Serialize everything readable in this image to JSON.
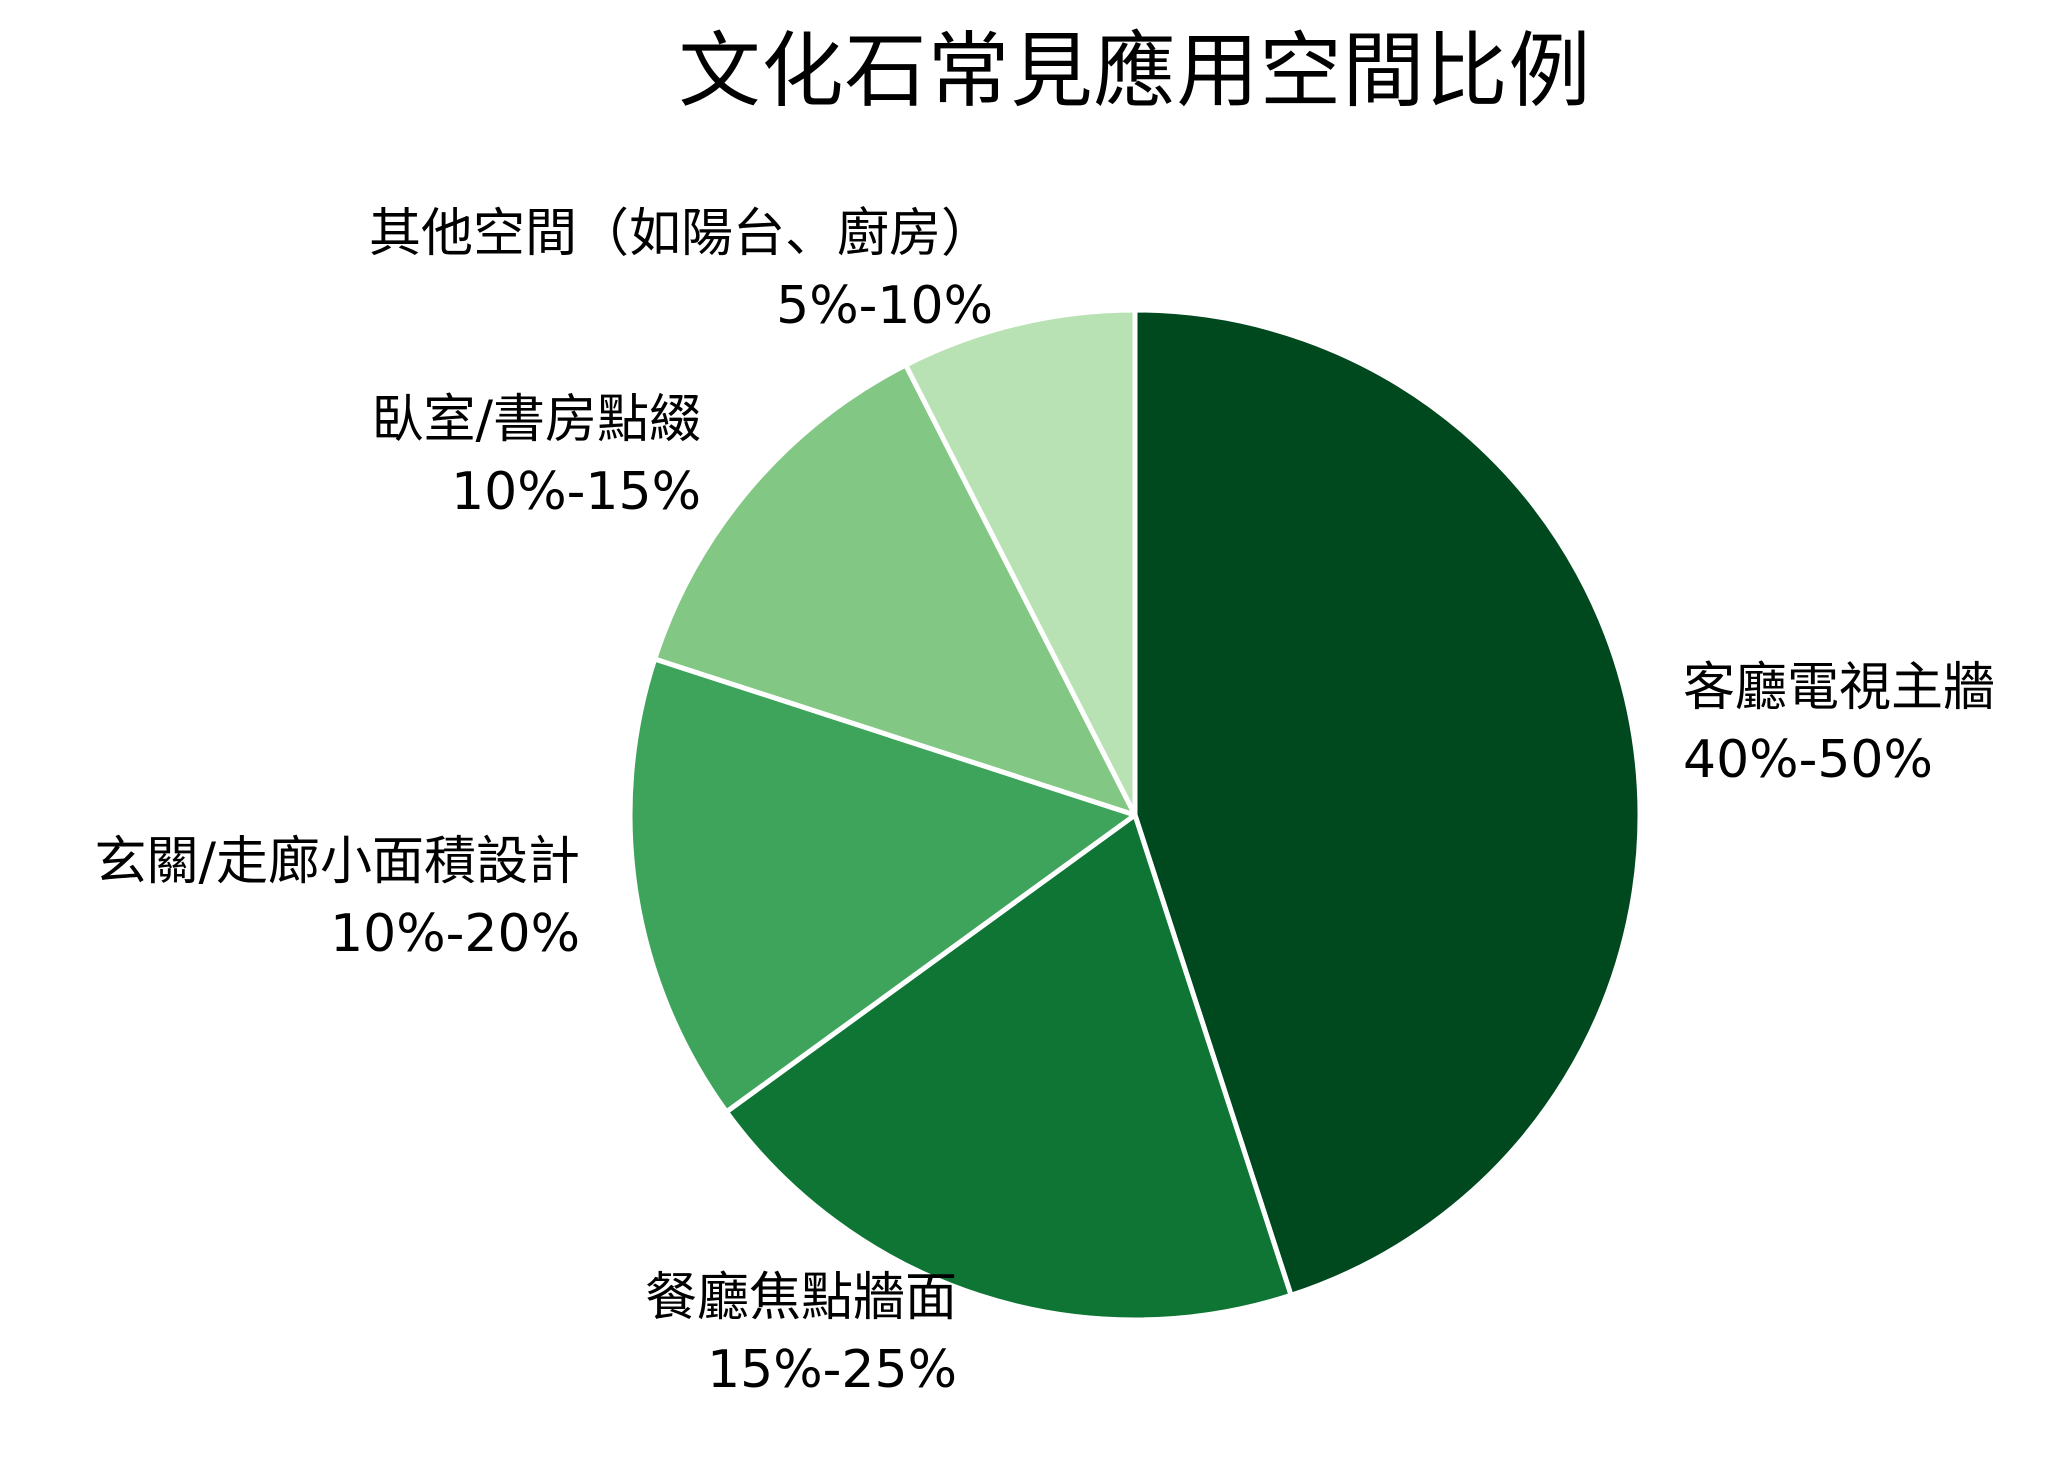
{
  "chart_data": {
    "type": "pie",
    "title": "文化石常見應用空間比例",
    "categories": [
      "客廳電視主牆",
      "餐廳焦點牆面",
      "玄關/走廊小面積設計",
      "臥室/書房點綴",
      "其他空間（如陽台、廚房）"
    ],
    "range_labels": [
      "40%-50%",
      "15%-25%",
      "10%-20%",
      "10%-15%",
      "5%-10%"
    ],
    "values": [
      45,
      20,
      15,
      12.5,
      7.5
    ],
    "colors": [
      "#00491e",
      "#0e7534",
      "#3ea45b",
      "#82c884",
      "#b8e2b4"
    ],
    "start_angle_deg": 0,
    "direction": "clockwise",
    "slice_border_color": "#ffffff",
    "legend": "none",
    "labels_position": "outside"
  },
  "title": "文化石常見應用空間比例",
  "labels": [
    {
      "name": "客廳電視主牆",
      "pct": "40%-50%"
    },
    {
      "name": "餐廳焦點牆面",
      "pct": "15%-25%"
    },
    {
      "name": "玄關/走廊小面積設計",
      "pct": "10%-20%"
    },
    {
      "name": "臥室/書房點綴",
      "pct": "10%-15%"
    },
    {
      "name": "其他空間（如陽台、廚房）",
      "pct": "5%-10%"
    }
  ]
}
